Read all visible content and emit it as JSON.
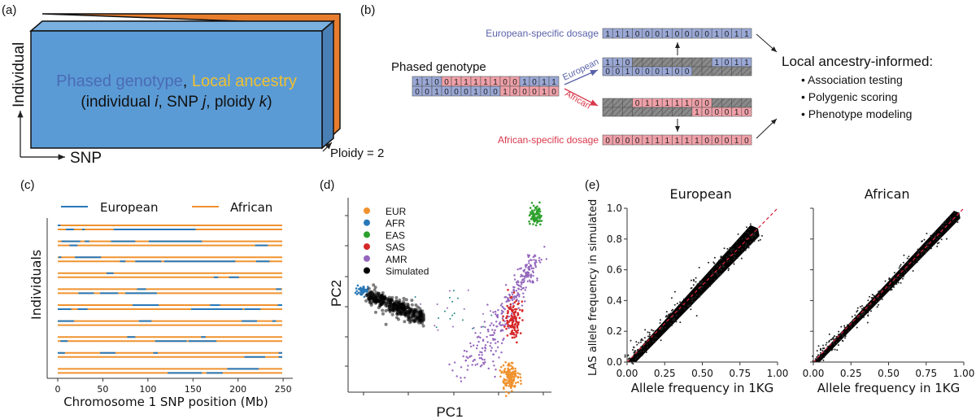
{
  "panel_a": {
    "label": "(a)",
    "axis_individual": "Individual",
    "axis_snp": "SNP",
    "axis_ploidy": "Ploidy = 2",
    "title_genotype": "Phased genotype",
    "title_sep": ",",
    "title_ancestry": "Local ancestry",
    "subtitle": "(individual i, SNP j, ploidy k)",
    "colors": {
      "front": "#5b9bd5",
      "top": "#7ab0e0",
      "side": "#4a7fb5",
      "back": "#e87d2e",
      "genotype_text": "#4a6bb5",
      "ancestry_text": "#f0c030"
    }
  },
  "panel_b": {
    "label": "(b)",
    "phased_label": "Phased genotype",
    "european_arrow": "European",
    "african_arrow": "African",
    "european_dosage_label": "European-specific dosage",
    "african_dosage_label": "African-specific dosage",
    "hap1": [
      1,
      1,
      0,
      0,
      1,
      1,
      1,
      1,
      1,
      0,
      0,
      1,
      0,
      1,
      1
    ],
    "hap1_ancestry": [
      "E",
      "E",
      "E",
      "A",
      "A",
      "A",
      "A",
      "A",
      "A",
      "A",
      "A",
      "E",
      "E",
      "E",
      "E"
    ],
    "hap2": [
      0,
      0,
      1,
      0,
      0,
      0,
      1,
      0,
      0,
      1,
      0,
      0,
      0,
      1,
      0
    ],
    "hap2_ancestry": [
      "E",
      "E",
      "E",
      "E",
      "E",
      "E",
      "E",
      "E",
      "E",
      "A",
      "A",
      "A",
      "A",
      "A",
      "A"
    ],
    "european_dosage": [
      1,
      1,
      1,
      0,
      0,
      0,
      1,
      0,
      0,
      0,
      0,
      1,
      0,
      1,
      1
    ],
    "african_dosage": [
      0,
      0,
      0,
      0,
      1,
      1,
      1,
      1,
      1,
      1,
      0,
      0,
      0,
      1,
      0
    ],
    "applications_title": "Local ancestry-informed:",
    "applications": [
      "Association testing",
      "Polygenic scoring",
      "Phenotype modeling"
    ],
    "colors": {
      "european": "#9aa8d6",
      "african": "#f0a0a8",
      "masked": "#8a8a8a",
      "european_text": "#5a62a8",
      "african_text": "#d8384a"
    }
  },
  "panel_c": {
    "label": "(c)",
    "legend": [
      "European",
      "African"
    ],
    "ylabel": "Individuals",
    "xlabel": "Chromosome 1 SNP position (Mb)",
    "xticks": [
      0,
      50,
      100,
      150,
      200,
      250
    ],
    "xlim": [
      0,
      249
    ],
    "colors": {
      "European": "#2878b8",
      "African": "#f0922e"
    },
    "european_segments": [
      [
        [
          [
            0,
            3
          ]
        ],
        [
          [
            9,
            18
          ],
          [
            27,
            30
          ],
          [
            62,
            153
          ]
        ]
      ],
      [
        [
          [
            4,
            25
          ],
          [
            30,
            35
          ],
          [
            59,
            86
          ],
          [
            101,
            160
          ]
        ],
        [
          [
            13,
            22
          ],
          [
            219,
            233
          ]
        ]
      ],
      [
        [
          [
            1,
            4
          ],
          [
            19,
            48
          ]
        ],
        [
          [
            69,
            75
          ],
          [
            86,
            115
          ],
          [
            118,
            197
          ],
          [
            220,
            235
          ]
        ]
      ],
      [
        [
          [
            54,
            62
          ]
        ],
        [
          [
            173,
            178
          ],
          [
            190,
            201
          ]
        ]
      ],
      [
        [
          [
            88,
            98
          ],
          [
            242,
            248
          ]
        ],
        [
          [
            23,
            40
          ],
          [
            47,
            67
          ],
          [
            75,
            110
          ]
        ]
      ],
      [
        [
          [
            83,
            112
          ],
          [
            169,
            180
          ],
          [
            244,
            249
          ]
        ],
        [
          [
            0,
            15
          ],
          [
            22,
            33
          ],
          [
            148,
            205
          ],
          [
            207,
            225
          ]
        ]
      ],
      [
        [
          [
            0,
            18
          ],
          [
            90,
            104
          ],
          [
            204,
            221
          ],
          [
            238,
            242
          ]
        ],
        []
      ],
      [
        [
          [
            77,
            86
          ],
          [
            159,
            164
          ]
        ],
        [
          [
            3,
            11
          ],
          [
            108,
            143
          ],
          [
            145,
            176
          ]
        ]
      ],
      [
        [
          [
            0,
            8
          ],
          [
            47,
            64
          ],
          [
            106,
            111
          ],
          [
            245,
            249
          ]
        ],
        [
          [
            207,
            230
          ],
          [
            245,
            249
          ]
        ]
      ],
      [
        [
          [
            188,
            223
          ]
        ],
        [
          [
            122,
            160
          ],
          [
            165,
            183
          ]
        ]
      ]
    ]
  },
  "panel_d": {
    "label": "(d)",
    "xlabel": "PC1",
    "ylabel": "PC2",
    "legend": [
      {
        "name": "EUR",
        "color": "#f0922e"
      },
      {
        "name": "AFR",
        "color": "#2878b8"
      },
      {
        "name": "EAS",
        "color": "#2ca02c"
      },
      {
        "name": "SAS",
        "color": "#d62728"
      },
      {
        "name": "AMR",
        "color": "#9467bd"
      },
      {
        "name": "Simulated",
        "color": "#000000"
      }
    ]
  },
  "panel_e": {
    "label": "(e)",
    "ylabel": "LAS allele frequency in simulated",
    "xlabel": "Allele frequency in 1KG",
    "xticks": [
      "0.00",
      "0.25",
      "0.50",
      "0.75",
      "1.00"
    ],
    "yticks": [
      "0.0",
      "0.2",
      "0.4",
      "0.6",
      "0.8",
      "1.0"
    ],
    "xlim": [
      0,
      1
    ],
    "ylim": [
      0,
      1
    ],
    "subplots": [
      {
        "title": "European",
        "max_x": 0.87
      },
      {
        "title": "African",
        "max_x": 0.97
      }
    ],
    "diagonal_color": "#e0203a"
  }
}
